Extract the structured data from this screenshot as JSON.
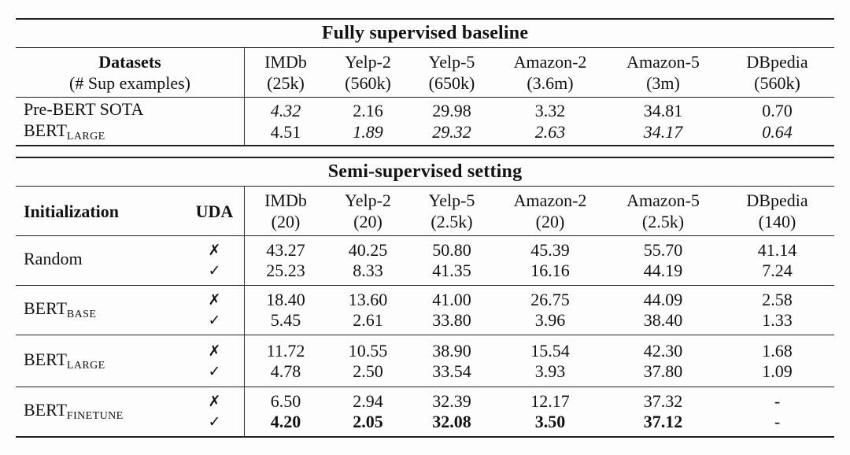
{
  "supervised": {
    "title": "Fully supervised baseline",
    "row_header": {
      "line1": "Datasets",
      "line2": "(# Sup examples)"
    },
    "columns": [
      {
        "name": "IMDb",
        "count": "(25k)"
      },
      {
        "name": "Yelp-2",
        "count": "(560k)"
      },
      {
        "name": "Yelp-5",
        "count": "(650k)"
      },
      {
        "name": "Amazon-2",
        "count": "(3.6m)"
      },
      {
        "name": "Amazon-5",
        "count": "(3m)"
      },
      {
        "name": "DBpedia",
        "count": "(560k)"
      }
    ],
    "rows": [
      {
        "label": {
          "base": "Pre-BERT SOTA",
          "sub": ""
        },
        "values": [
          "4.32",
          "2.16",
          "29.98",
          "3.32",
          "34.81",
          "0.70"
        ]
      },
      {
        "label": {
          "base": "BERT",
          "sub": "LARGE"
        },
        "values": [
          "4.51",
          "1.89",
          "29.32",
          "2.63",
          "34.17",
          "0.64"
        ]
      }
    ]
  },
  "semi": {
    "title": "Semi-supervised setting",
    "col1_header": "Initialization",
    "col2_header": "UDA",
    "columns": [
      {
        "name": "IMDb",
        "count": "(20)"
      },
      {
        "name": "Yelp-2",
        "count": "(20)"
      },
      {
        "name": "Yelp-5",
        "count": "(2.5k)"
      },
      {
        "name": "Amazon-2",
        "count": "(20)"
      },
      {
        "name": "Amazon-5",
        "count": "(2.5k)"
      },
      {
        "name": "DBpedia",
        "count": "(140)"
      }
    ],
    "groups": [
      {
        "label": {
          "base": "Random",
          "sub": ""
        },
        "rows": [
          {
            "uda": "✗",
            "values": [
              "43.27",
              "40.25",
              "50.80",
              "45.39",
              "55.70",
              "41.14"
            ]
          },
          {
            "uda": "✓",
            "values": [
              "25.23",
              "8.33",
              "41.35",
              "16.16",
              "44.19",
              "7.24"
            ]
          }
        ]
      },
      {
        "label": {
          "base": "BERT",
          "sub": "BASE"
        },
        "rows": [
          {
            "uda": "✗",
            "values": [
              "18.40",
              "13.60",
              "41.00",
              "26.75",
              "44.09",
              "2.58"
            ]
          },
          {
            "uda": "✓",
            "values": [
              "5.45",
              "2.61",
              "33.80",
              "3.96",
              "38.40",
              "1.33"
            ]
          }
        ]
      },
      {
        "label": {
          "base": "BERT",
          "sub": "LARGE"
        },
        "rows": [
          {
            "uda": "✗",
            "values": [
              "11.72",
              "10.55",
              "38.90",
              "15.54",
              "42.30",
              "1.68"
            ]
          },
          {
            "uda": "✓",
            "values": [
              "4.78",
              "2.50",
              "33.54",
              "3.93",
              "37.80",
              "1.09"
            ]
          }
        ]
      },
      {
        "label": {
          "base": "BERT",
          "sub": "FINETUNE"
        },
        "rows": [
          {
            "uda": "✗",
            "values": [
              "6.50",
              "2.94",
              "32.39",
              "12.17",
              "37.32",
              "-"
            ]
          },
          {
            "uda": "✓",
            "values": [
              "4.20",
              "2.05",
              "32.08",
              "3.50",
              "37.12",
              "-"
            ]
          }
        ]
      }
    ]
  },
  "colors": {
    "rule": "#222222",
    "text": "#121212",
    "background": "#fdfdfd"
  }
}
